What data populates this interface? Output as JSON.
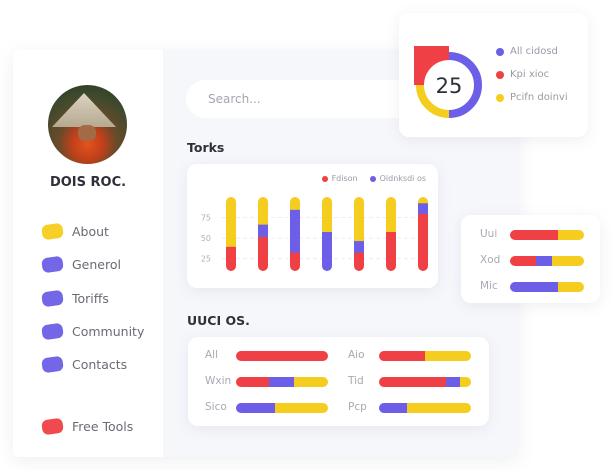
{
  "colors": {
    "red": "#ef4045",
    "purple": "#6c5ee6",
    "yellow": "#f5cd1e"
  },
  "profile": {
    "name": "DOIS ROC."
  },
  "sidebar": {
    "items": [
      {
        "label": "About",
        "color": "#f5cd1e"
      },
      {
        "label": "Generol",
        "color": "#6c5ee6"
      },
      {
        "label": "Toriffs",
        "color": "#6c5ee6"
      },
      {
        "label": "Community",
        "color": "#6c5ee6"
      },
      {
        "label": "Contacts",
        "color": "#6c5ee6"
      },
      {
        "label": "Free Tools",
        "color": "#ef4045"
      }
    ]
  },
  "search": {
    "placeholder": "Search..."
  },
  "donut": {
    "value": "25",
    "segments": [
      {
        "label": "All cidosd",
        "fraction": 0.5,
        "color": "#6c5ee6"
      },
      {
        "label": "Kpi xioc",
        "fraction": 0.25,
        "color": "#ef4045"
      },
      {
        "label": "Pcifn doinvi",
        "fraction": 0.25,
        "color": "#f5cd1e"
      }
    ]
  },
  "torks": {
    "title": "Torks"
  },
  "chart_data": {
    "type": "bar",
    "stacked": true,
    "ylim": [
      10,
      100
    ],
    "yticks": [
      "25",
      "50",
      "75"
    ],
    "grid": true,
    "legend": "top-right",
    "series": [
      {
        "name": "Fdison",
        "color": "#ef4045",
        "values": [
          30,
          42,
          23,
          0,
          23,
          48,
          70
        ]
      },
      {
        "name": "Oidnksdi os",
        "color": "#6c5ee6",
        "values": [
          0,
          15,
          52,
          48,
          14,
          0,
          13
        ]
      },
      {
        "color": "#f5cd1e",
        "values": [
          70,
          43,
          25,
          52,
          63,
          52,
          17
        ]
      }
    ]
  },
  "side_bars": [
    {
      "label": "Uui",
      "red": 0.65,
      "purple": 0,
      "yellow": 0.35
    },
    {
      "label": "Xod",
      "red": 0.35,
      "purple": 0.22,
      "yellow": 0.43
    },
    {
      "label": "Mic",
      "red": 0,
      "purple": 0.65,
      "yellow": 0.35
    }
  ],
  "uuci": {
    "title": "UUCI OS.",
    "rows": [
      {
        "label": "All",
        "red": 1,
        "purple": 0,
        "yellow": 0
      },
      {
        "label": "Aio",
        "red": 0.5,
        "purple": 0,
        "yellow": 0.5
      },
      {
        "label": "Wxin",
        "red": 0.36,
        "purple": 0.27,
        "yellow": 0.37
      },
      {
        "label": "Tid",
        "red": 0.73,
        "purple": 0.15,
        "yellow": 0.12
      },
      {
        "label": "Sico",
        "red": 0,
        "purple": 0.42,
        "yellow": 0.58
      },
      {
        "label": "Pcp",
        "red": 0,
        "purple": 0.3,
        "yellow": 0.7
      }
    ]
  }
}
